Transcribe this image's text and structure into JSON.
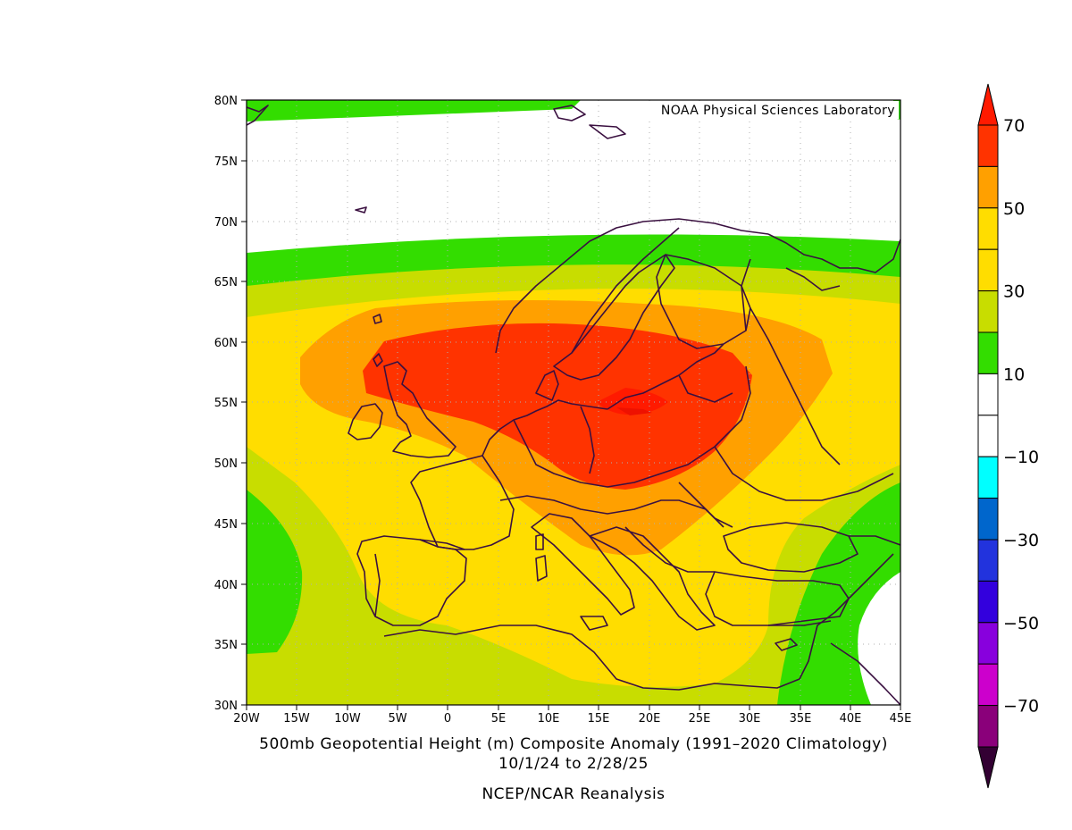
{
  "map": {
    "credit": "NOAA Physical Sciences Laboratory",
    "lat_labels": [
      "80N",
      "75N",
      "70N",
      "65N",
      "60N",
      "55N",
      "50N",
      "45N",
      "40N",
      "35N",
      "30N"
    ],
    "lon_labels": [
      "20W",
      "15W",
      "10W",
      "5W",
      "0",
      "5E",
      "10E",
      "15E",
      "20E",
      "25E",
      "30E",
      "35E",
      "40E",
      "45E"
    ],
    "lat_range": [
      30,
      80
    ],
    "lon_range": [
      -20,
      45
    ],
    "gridlines": "dotted",
    "coastline_color": "#3a1040"
  },
  "caption": {
    "line1": "500mb Geopotential Height (m) Composite Anomaly (1991–2020 Climatology)",
    "line2": "10/1/24  to 2/28/25",
    "line3": "NCEP/NCAR Reanalysis"
  },
  "colorbar": {
    "labels": [
      "70",
      "50",
      "30",
      "10",
      "−10",
      "−30",
      "−50",
      "−70"
    ],
    "colors": [
      "#ff3300",
      "#ffa000",
      "#ffdd00",
      "#ffdd00",
      "#c8dd00",
      "#33dd00",
      "#ffffff",
      "#ffffff",
      "#00ffff",
      "#0066cc",
      "#2233dd",
      "#3300dd",
      "#8800dd",
      "#cc00cc",
      "#8a007a"
    ],
    "top_arrow_color": "#ff1a00",
    "bottom_arrow_color": "#330033"
  },
  "chart_data": {
    "type": "heatmap",
    "title": "500mb Geopotential Height (m) Composite Anomaly (1991–2020 Climatology)",
    "subtitle": "10/1/24  to 2/28/25",
    "source": "NCEP/NCAR Reanalysis",
    "xlim": [
      -20,
      45
    ],
    "ylim": [
      30,
      80
    ],
    "contour_levels": [
      -70,
      -60,
      -50,
      -40,
      -30,
      -20,
      -10,
      0,
      10,
      20,
      30,
      40,
      50,
      60,
      70
    ],
    "max_anomaly_region": "Central Europe / Baltic (~55N, 18E)"
  }
}
